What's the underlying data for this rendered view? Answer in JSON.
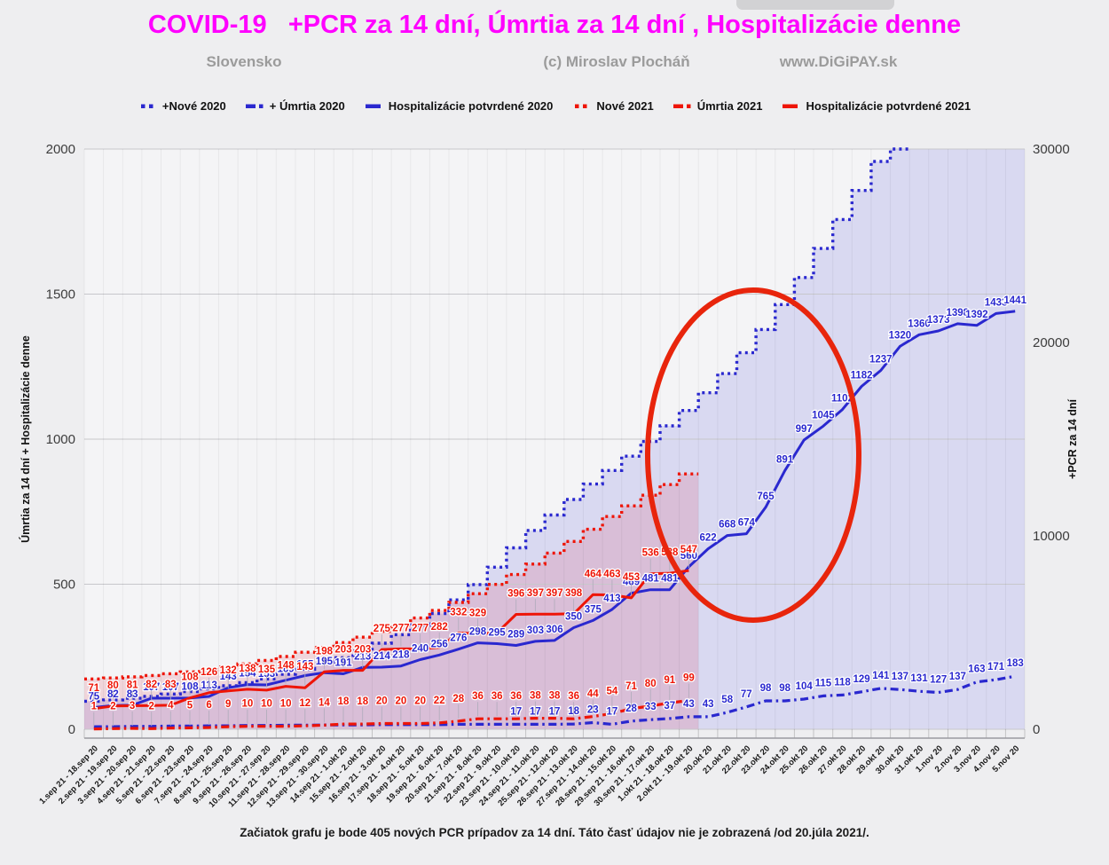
{
  "header": {
    "title": "COVID-19   +PCR za 14 dní, Úmrtia za 14 dní , Hospitalizácie denne",
    "title_color": "#ff00ff",
    "subtitle_left": "Slovensko",
    "subtitle_center": "(c) Miroslav Plocháň",
    "subtitle_right": "www.DiGiPAY.sk"
  },
  "legend": [
    {
      "label": "+Nové 2020",
      "color": "#2a28cf",
      "style": "dotted"
    },
    {
      "label": "+ Úmrtia 2020",
      "color": "#2a28cf",
      "style": "dashdot"
    },
    {
      "label": "Hospitalizácie potvrdené 2020",
      "color": "#2a28cf",
      "style": "solid"
    },
    {
      "label": "Nové 2021",
      "color": "#ee1507",
      "style": "dotted"
    },
    {
      "label": "Úmrtia 2021",
      "color": "#ee1507",
      "style": "dashdot"
    },
    {
      "label": "Hospitalizácie potvrdené 2021",
      "color": "#ee1507",
      "style": "solid"
    }
  ],
  "footnote": "Začiatok grafu  je bode 405 nových PCR prípadov za 14 dní.  Táto časť údajov nie je zobrazená /od 20.júla 2021/.",
  "chart_data": {
    "type": "area",
    "grid": true,
    "annotation": {
      "shape": "ellipse",
      "color": "#e8250c"
    },
    "left_axis": {
      "title": "Úmrtia za 14 dní + Hospitalizácie denne",
      "ticks": [
        0,
        500,
        1000,
        1500,
        2000
      ],
      "max": 2000
    },
    "right_axis": {
      "title": "+PCR za 14 dní",
      "ticks": [
        0,
        10000,
        20000,
        30000
      ],
      "max": 30000
    },
    "x_labels": [
      "1.sep 21 - 18.sep 20",
      "2.sep 21 - 19.sep 20",
      "3.sep 21 - 20.sep 20",
      "4.sep 21 - 21.sep 20",
      "5.sep 21 - 22.sep 20",
      "6.sep 21 - 23.sep 20",
      "7.sep 21 - 24.sep 20",
      "8.sep 21 - 25.sep 20",
      "9.sep 21 - 26.sep 20",
      "10.sep 21 - 27.sep 20",
      "11.sep 21 - 28.sep 20",
      "12.sep 21 - 29.sep 20",
      "13.sep 21 - 30.sep 20",
      "14.sep 21 - 1.okt 20",
      "15.sep 21 - 2.okt 20",
      "16.sep 21 - 3.okt 20",
      "17.sep 21 - 4.okt 20",
      "18.sep 21 - 5.okt 20",
      "19.sep 21 - 6.okt 20",
      "20.sep 21 - 7.okt 20",
      "21.sep 21 - 8.okt 20",
      "22.sep 21 - 9.okt 20",
      "23.sep 21 - 10.okt 20",
      "24.sep 21 - 11.okt 20",
      "25.sep 21 - 12.okt 20",
      "26.sep 21 - 13.okt 20",
      "27.sep 21 - 14.okt 20",
      "28.sep 21 - 15.okt 20",
      "29.sep 21 - 16.okt 20",
      "30.sep 21 - 17.okt 20",
      "1.okt 21 - 18.okt 20",
      "2.okt 21 - 19.okt 20",
      "20.okt 20",
      "21.okt 20",
      "22.okt 20",
      "23.okt 20",
      "24.okt 20",
      "25.okt 20",
      "26.okt 20",
      "27.okt 20",
      "28.okt 20",
      "29.okt 20",
      "30.okt 20",
      "31.okt 20",
      "1.nov 20",
      "2.nov 20",
      "3.nov 20",
      "4.nov 20",
      "5.nov 20"
    ],
    "series": [
      {
        "name": "+Nové 2020",
        "axis": "right",
        "style": "step-dotted",
        "color": "#2a28cf",
        "fill": "rgba(80,80,215,0.16)",
        "values": [
          1450,
          1520,
          1600,
          1700,
          1820,
          1950,
          2090,
          2250,
          2410,
          2600,
          2840,
          3100,
          3390,
          3700,
          4050,
          4450,
          4890,
          5390,
          5980,
          6690,
          7480,
          8380,
          9380,
          10280,
          11080,
          11880,
          12680,
          13380,
          14120,
          14880,
          15690,
          16480,
          17400,
          18390,
          19470,
          20670,
          21960,
          23360,
          24860,
          26360,
          27860,
          29360,
          30000,
          30000,
          30000,
          30000,
          30000,
          30000,
          30000
        ]
      },
      {
        "name": "Nové 2021",
        "axis": "right",
        "style": "step-dotted",
        "color": "#ee1507",
        "fill": "rgba(220,30,60,0.14)",
        "values": [
          2600,
          2650,
          2710,
          2780,
          2870,
          2970,
          3080,
          3220,
          3380,
          3560,
          3760,
          3980,
          4220,
          4480,
          4760,
          5060,
          5390,
          5750,
          6140,
          6560,
          7010,
          7490,
          8000,
          8540,
          9110,
          9710,
          10340,
          11000,
          11550,
          12100,
          12650,
          13200
        ]
      },
      {
        "name": "Hospitalizácie potvrdené 2020",
        "axis": "left",
        "style": "solid",
        "color": "#2a28cf",
        "label_dy": -9,
        "values": [
          75,
          82,
          83,
          107,
          107,
          108,
          113,
          143,
          154,
          153,
          169,
          185,
          195,
          191,
          213,
          214,
          218,
          240,
          256,
          276,
          298,
          295,
          289,
          303,
          306,
          350,
          375,
          413,
          469,
          481,
          481,
          560,
          622,
          668,
          674,
          765,
          891,
          997,
          1045,
          1102,
          1182,
          1237,
          1320,
          1360,
          1373,
          1398,
          1392,
          1433,
          1441
        ],
        "labels": [
          "75",
          "82",
          "83",
          "107",
          "107",
          "108",
          "113",
          "143",
          "154",
          "153",
          "169",
          "185",
          "195",
          "191",
          "213",
          "214",
          "218",
          "240",
          "256",
          "276",
          "298",
          "295",
          "289",
          "303",
          "306",
          "350",
          "375",
          "413",
          "469",
          "481",
          "481",
          "560",
          "622",
          "668",
          "674",
          "765",
          "891",
          "997",
          "1045",
          "1102",
          "1182",
          "1237",
          "1320",
          "1360",
          "1373",
          "1398",
          "1392",
          "1433",
          "1441"
        ]
      },
      {
        "name": "Hospitalizácie potvrdené 2021",
        "axis": "left",
        "style": "solid",
        "color": "#ee1507",
        "label_dy": -20,
        "connectors": true,
        "values": [
          71,
          80,
          81,
          82,
          83,
          108,
          126,
          132,
          138,
          135,
          148,
          143,
          198,
          203,
          203,
          275,
          277,
          277,
          282,
          332,
          329,
          332,
          396,
          397,
          397,
          398,
          464,
          463,
          453,
          536,
          538,
          547
        ],
        "labels": [
          "71",
          "80",
          "81",
          "82",
          "83",
          "108",
          "126",
          "132",
          "138",
          "135",
          "148",
          "143",
          "198",
          "203",
          "203",
          "275",
          "277",
          "277",
          "282",
          "332",
          "329",
          "",
          "396",
          "397",
          "397",
          "398",
          "464",
          "463",
          "453",
          "536",
          "538",
          "547"
        ]
      },
      {
        "name": "+ Úmrtia 2020",
        "axis": "left",
        "style": "dashdot",
        "color": "#2a28cf",
        "label_dy": -11,
        "connectors": true,
        "values": [
          9,
          9,
          10,
          10,
          11,
          11,
          12,
          12,
          13,
          13,
          14,
          14,
          15,
          15,
          15,
          16,
          16,
          16,
          16,
          17,
          17,
          17,
          17,
          17,
          17,
          18,
          23,
          17,
          28,
          33,
          37,
          43,
          43,
          58,
          77,
          98,
          98,
          104,
          115,
          118,
          129,
          141,
          137,
          131,
          127,
          137,
          163,
          171,
          183
        ],
        "labels": [
          "",
          "",
          "",
          "",
          "",
          "",
          "",
          "",
          "",
          "",
          "",
          "",
          "",
          "",
          "",
          "",
          "",
          "",
          "",
          "",
          "",
          "",
          "17",
          "17",
          "17",
          "18",
          "23",
          "17",
          "28",
          "33",
          "37",
          "43",
          "43",
          "58",
          "77",
          "98",
          "98",
          "104",
          "115",
          "118",
          "129",
          "141",
          "137",
          "131",
          "127",
          "137",
          "163",
          "171",
          "183"
        ]
      },
      {
        "name": "Úmrtia 2021",
        "axis": "left",
        "style": "dashdot",
        "color": "#ee1507",
        "label_dy": -22,
        "connectors": true,
        "values": [
          1,
          2,
          3,
          2,
          4,
          5,
          6,
          9,
          10,
          10,
          10,
          12,
          14,
          18,
          18,
          20,
          20,
          20,
          22,
          28,
          36,
          36,
          36,
          38,
          38,
          36,
          44,
          54,
          71,
          80,
          91,
          99
        ],
        "labels": [
          "1",
          "2",
          "3",
          "2",
          "4",
          "5",
          "6",
          "9",
          "10",
          "10",
          "10",
          "12",
          "14",
          "18",
          "18",
          "20",
          "20",
          "20",
          "22",
          "28",
          "36",
          "36",
          "36",
          "38",
          "38",
          "36",
          "44",
          "54",
          "71",
          "80",
          "91",
          "99"
        ]
      }
    ]
  }
}
